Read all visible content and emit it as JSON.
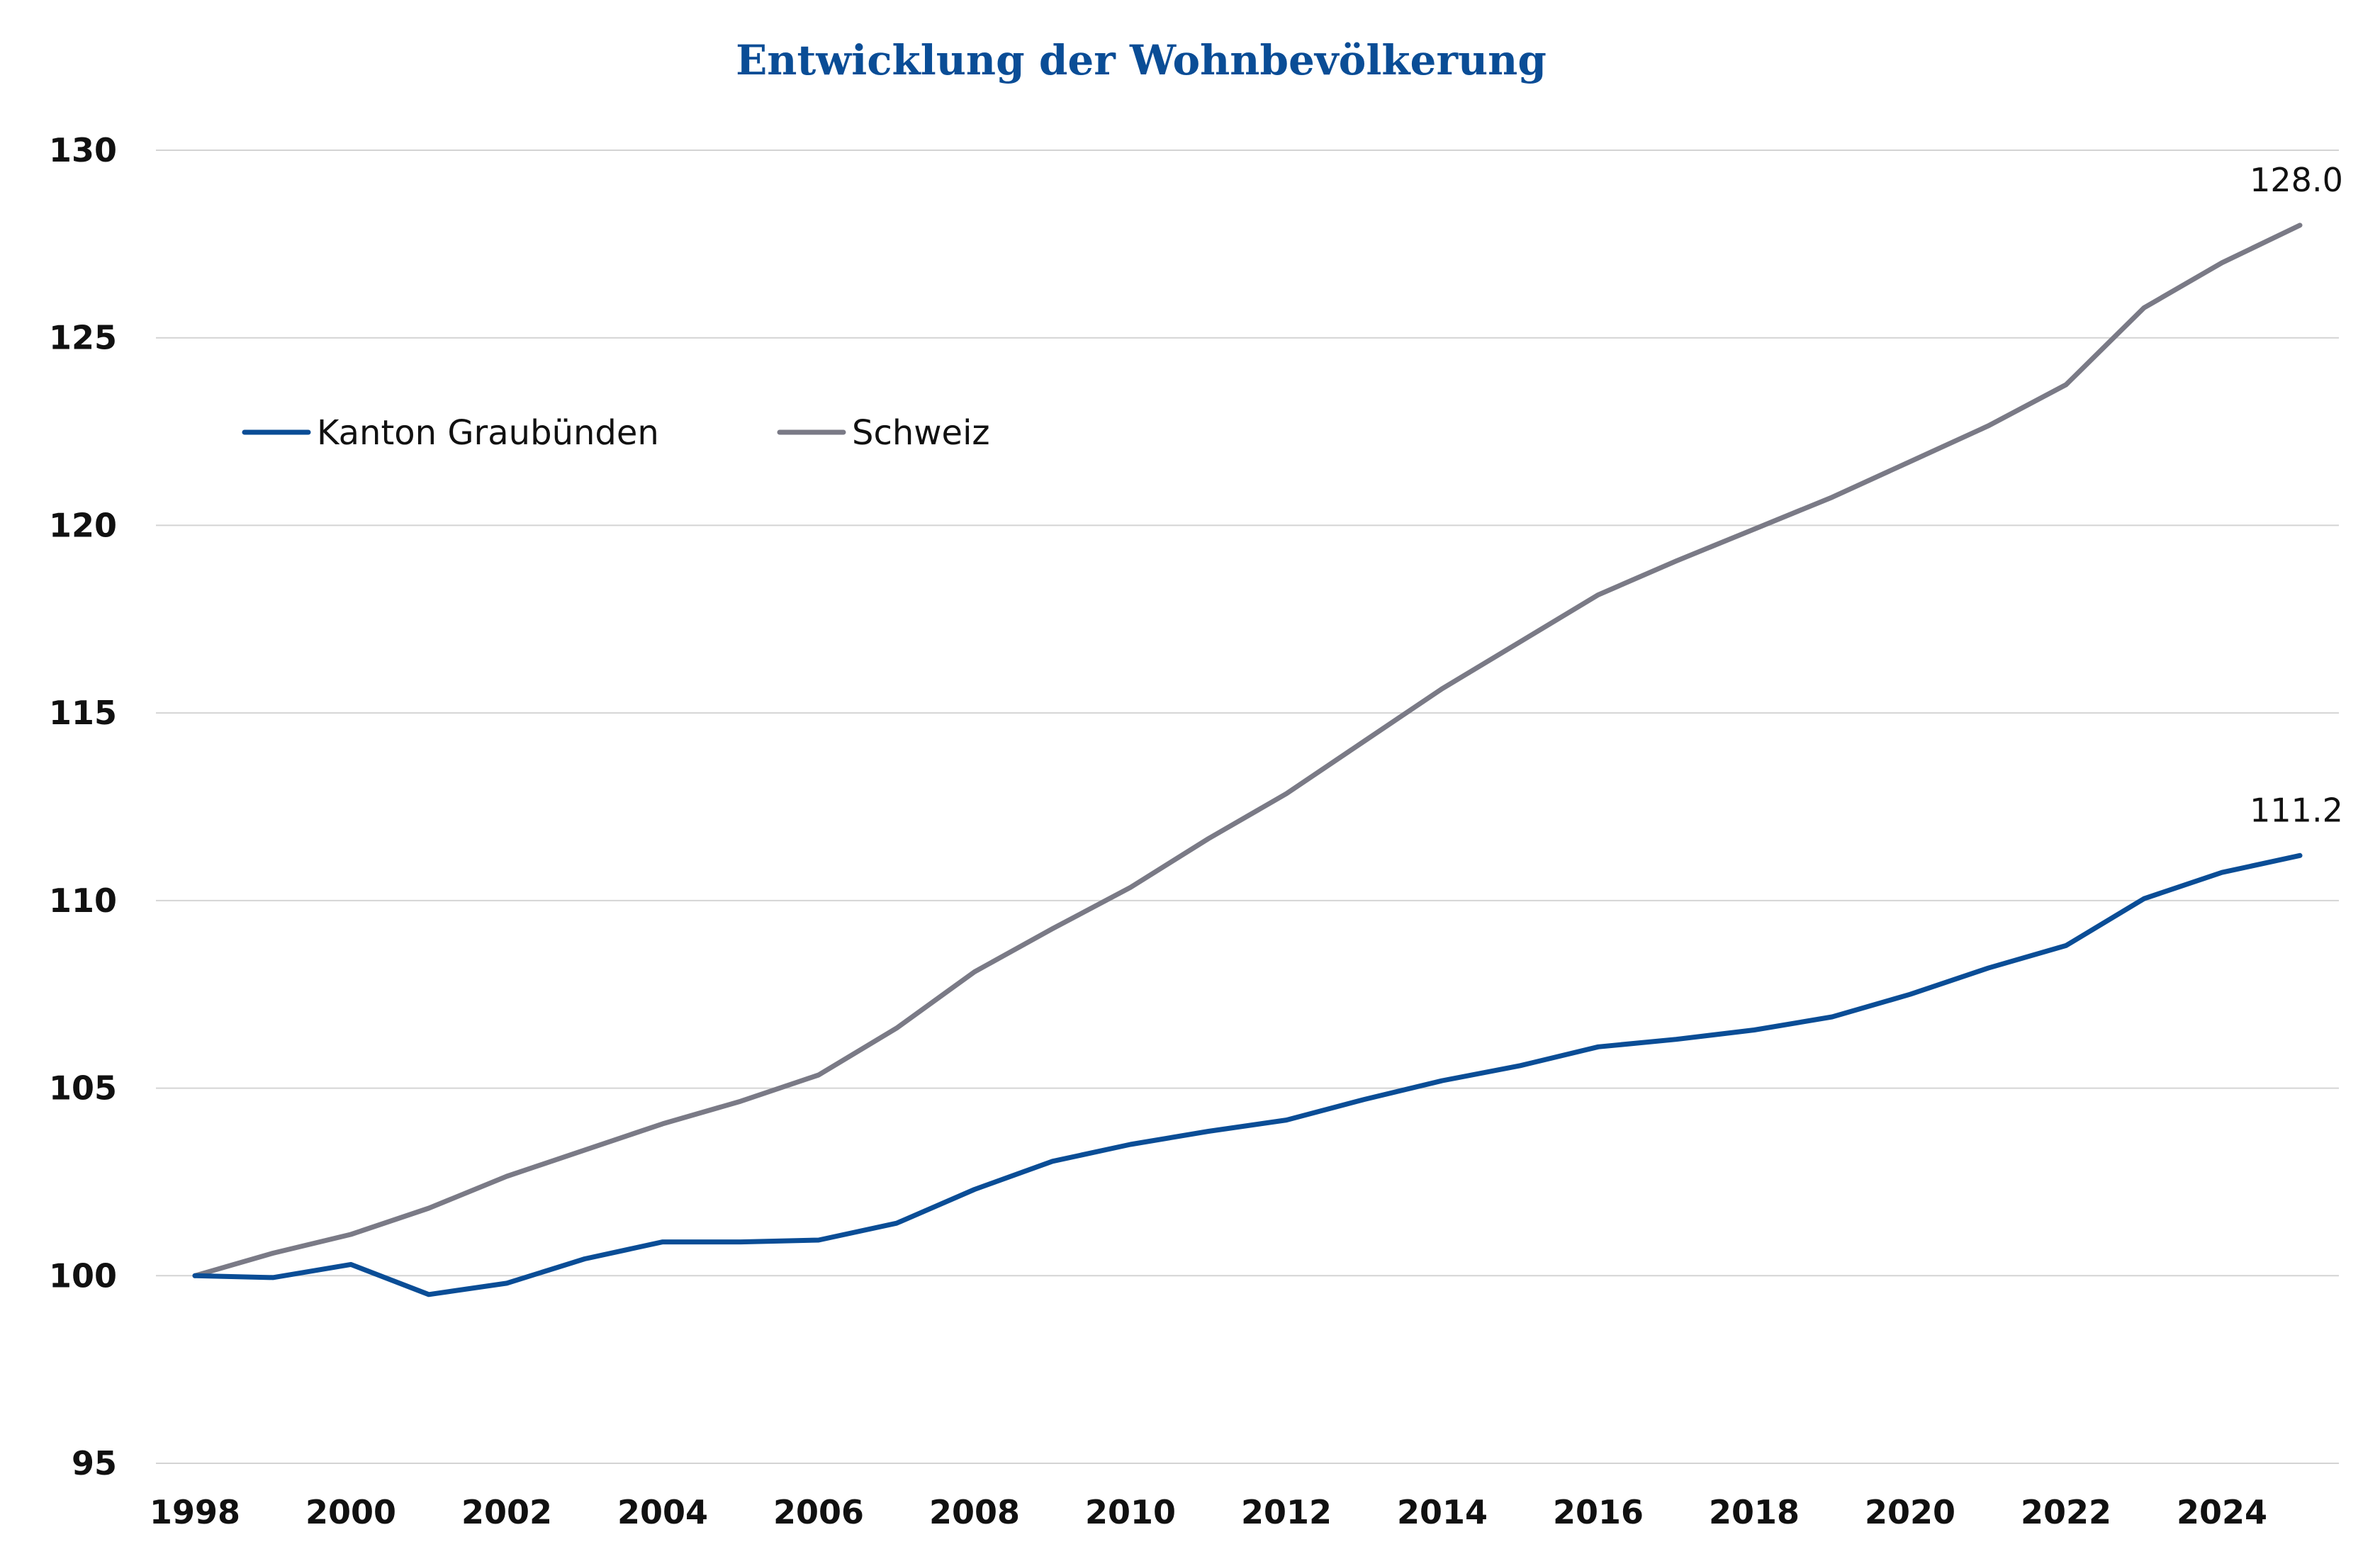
{
  "chart_data": {
    "type": "line",
    "title": "Entwicklung der Wohnbevölkerung",
    "xlabel": "",
    "ylabel": "",
    "x": [
      1998,
      1999,
      2000,
      2001,
      2002,
      2003,
      2004,
      2005,
      2006,
      2007,
      2008,
      2009,
      2010,
      2011,
      2012,
      2013,
      2014,
      2015,
      2016,
      2017,
      2018,
      2019,
      2020,
      2021,
      2022,
      2023,
      2024,
      2025
    ],
    "xticks": [
      "1998",
      "2000",
      "2002",
      "2004",
      "2006",
      "2008",
      "2010",
      "2012",
      "2014",
      "2016",
      "2018",
      "2020",
      "2022",
      "2024"
    ],
    "yticks": [
      "95",
      "100",
      "105",
      "110",
      "115",
      "120",
      "125",
      "130"
    ],
    "xlim": [
      1998,
      2025
    ],
    "ylim": [
      95,
      130
    ],
    "grid": true,
    "legend_position": "top-left",
    "series": [
      {
        "name": "Kanton Graubünden",
        "color": "#0a4d96",
        "values": [
          100.0,
          99.95,
          100.3,
          99.5,
          99.8,
          100.45,
          100.9,
          100.9,
          100.95,
          101.4,
          102.3,
          103.05,
          103.5,
          103.85,
          104.15,
          104.7,
          105.2,
          105.6,
          106.1,
          106.3,
          106.55,
          106.9,
          107.5,
          108.2,
          108.8,
          110.05,
          110.75,
          111.2
        ],
        "end_label": "111.2"
      },
      {
        "name": "Schweiz",
        "color": "#7a7a86",
        "values": [
          100.0,
          100.6,
          101.1,
          101.8,
          102.65,
          103.35,
          104.05,
          104.65,
          105.35,
          106.6,
          108.1,
          109.25,
          110.35,
          111.65,
          112.85,
          114.25,
          115.65,
          116.9,
          118.15,
          119.05,
          119.9,
          120.75,
          121.7,
          122.65,
          123.75,
          125.8,
          127.0,
          128.0
        ],
        "end_label": "128.0"
      }
    ]
  }
}
